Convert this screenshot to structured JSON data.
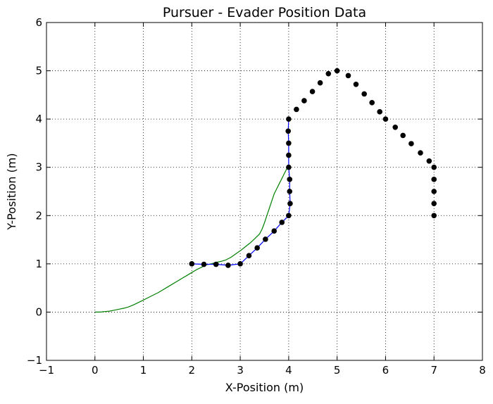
{
  "chart_data": {
    "type": "line",
    "title": "Pursuer - Evader Position Data",
    "xlabel": "X-Position (m)",
    "ylabel": "Y-Position (m)",
    "xlim": [
      -1,
      8
    ],
    "ylim": [
      -1,
      6
    ],
    "xticks": [
      -1,
      0,
      1,
      2,
      3,
      4,
      5,
      6,
      7,
      8
    ],
    "yticks": [
      -1,
      0,
      1,
      2,
      3,
      4,
      5,
      6
    ],
    "xtick_labels": [
      "−1",
      "0",
      "1",
      "2",
      "3",
      "4",
      "5",
      "6",
      "7",
      "8"
    ],
    "ytick_labels": [
      "−1",
      "0",
      "1",
      "2",
      "3",
      "4",
      "5",
      "6"
    ],
    "grid": true,
    "legend": "none",
    "series": [
      {
        "style": "line",
        "color": "#008000",
        "x": [
          0.0,
          0.1,
          0.2,
          0.3,
          0.4,
          0.5,
          0.6,
          0.7,
          0.8,
          0.9,
          1.0,
          1.1,
          1.2,
          1.3,
          1.4,
          1.5,
          1.6,
          1.7,
          1.8,
          1.9,
          2.0,
          2.1,
          2.2,
          2.3,
          2.4,
          2.5,
          2.6,
          2.7,
          2.8,
          2.9,
          3.0,
          3.1,
          3.2,
          3.3,
          3.4,
          3.45,
          3.5,
          3.55,
          3.6,
          3.65,
          3.7,
          3.75,
          3.8,
          3.85,
          3.9,
          3.95,
          4.0
        ],
        "y": [
          0.0,
          0.0,
          0.01,
          0.02,
          0.04,
          0.06,
          0.08,
          0.11,
          0.15,
          0.2,
          0.25,
          0.3,
          0.35,
          0.4,
          0.46,
          0.52,
          0.58,
          0.64,
          0.7,
          0.76,
          0.82,
          0.88,
          0.93,
          0.98,
          1.0,
          1.03,
          1.05,
          1.08,
          1.13,
          1.2,
          1.27,
          1.35,
          1.43,
          1.52,
          1.62,
          1.72,
          1.85,
          2.0,
          2.15,
          2.3,
          2.45,
          2.55,
          2.65,
          2.75,
          2.85,
          2.95,
          3.05
        ]
      },
      {
        "style": "line",
        "color": "#0000ff",
        "x": [
          2.0,
          2.25,
          2.5,
          2.75,
          3.0,
          3.18,
          3.35,
          3.52,
          3.7,
          3.86,
          4.0,
          4.03,
          4.02,
          4.02,
          4.0,
          4.0,
          4.0,
          3.99,
          4.0
        ],
        "y": [
          1.0,
          0.99,
          0.99,
          0.97,
          1.0,
          1.17,
          1.33,
          1.51,
          1.68,
          1.86,
          2.0,
          2.25,
          2.5,
          2.75,
          3.0,
          3.25,
          3.5,
          3.75,
          4.0
        ]
      },
      {
        "style": "markers",
        "color": "#000000",
        "x": [
          2.0,
          2.25,
          2.5,
          2.75,
          3.0,
          3.18,
          3.35,
          3.52,
          3.7,
          3.86,
          4.0,
          4.03,
          4.02,
          4.02,
          4.0,
          4.0,
          4.0,
          3.99,
          4.0,
          4.16,
          4.32,
          4.49,
          4.65,
          4.82,
          5.0,
          5.23,
          5.39,
          5.56,
          5.72,
          5.88,
          6.0,
          6.2,
          6.36,
          6.53,
          6.72,
          6.9,
          7.0,
          7.0,
          7.0,
          7.0,
          7.0
        ],
        "y": [
          1.0,
          0.99,
          0.99,
          0.97,
          1.0,
          1.17,
          1.33,
          1.51,
          1.68,
          1.86,
          2.0,
          2.25,
          2.5,
          2.75,
          3.0,
          3.25,
          3.5,
          3.75,
          4.0,
          4.2,
          4.38,
          4.57,
          4.75,
          4.94,
          5.0,
          4.9,
          4.72,
          4.52,
          4.34,
          4.15,
          4.0,
          3.83,
          3.66,
          3.49,
          3.3,
          3.13,
          3.0,
          2.75,
          2.5,
          2.25,
          2.0
        ]
      }
    ]
  }
}
